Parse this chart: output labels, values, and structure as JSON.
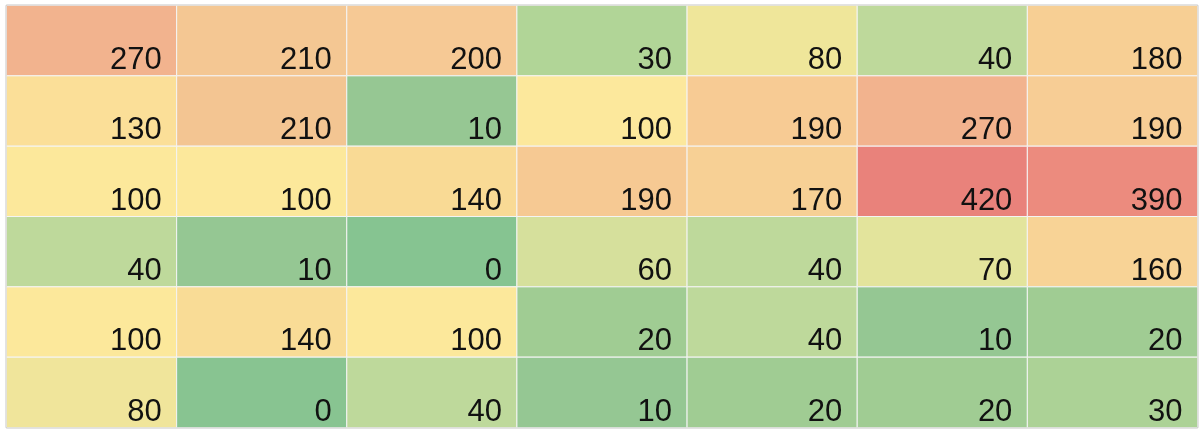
{
  "chart_data": {
    "type": "heatmap",
    "categories": [
      null,
      null,
      null,
      null,
      null,
      null,
      null
    ],
    "y_categories": [
      null,
      null,
      null,
      null,
      null,
      null
    ],
    "cells": [
      [
        270,
        210,
        200,
        30,
        80,
        40,
        180
      ],
      [
        130,
        210,
        10,
        100,
        190,
        270,
        190
      ],
      [
        100,
        100,
        140,
        190,
        170,
        420,
        390
      ],
      [
        40,
        10,
        0,
        60,
        40,
        70,
        160
      ],
      [
        100,
        140,
        100,
        20,
        40,
        10,
        20
      ],
      [
        80,
        0,
        40,
        10,
        20,
        20,
        30
      ]
    ],
    "colors": [
      [
        "#f2b38e",
        "#f4c793",
        "#f6c995",
        "#b1d597",
        "#efe69a",
        "#bed99b",
        "#f7cf94"
      ],
      [
        "#fbdf98",
        "#f3c592",
        "#96c793",
        "#fce89c",
        "#f7cb94",
        "#f2b38e",
        "#f7cd95"
      ],
      [
        "#fce89b",
        "#fce89b",
        "#f9da95",
        "#f6c993",
        "#f7d095",
        "#e9827b",
        "#ec8b7e"
      ],
      [
        "#bed99b",
        "#95c793",
        "#86c491",
        "#d6e09c",
        "#bed99b",
        "#e3e49c",
        "#f8d396"
      ],
      [
        "#fce89b",
        "#f9dc96",
        "#fce89b",
        "#a0cc93",
        "#bed99b",
        "#95c793",
        "#a0cc93"
      ],
      [
        "#f0e59b",
        "#88c491",
        "#bed99b",
        "#95c793",
        "#a0cc93",
        "#a0cc93",
        "#acd296"
      ]
    ],
    "data_labels": true
  }
}
